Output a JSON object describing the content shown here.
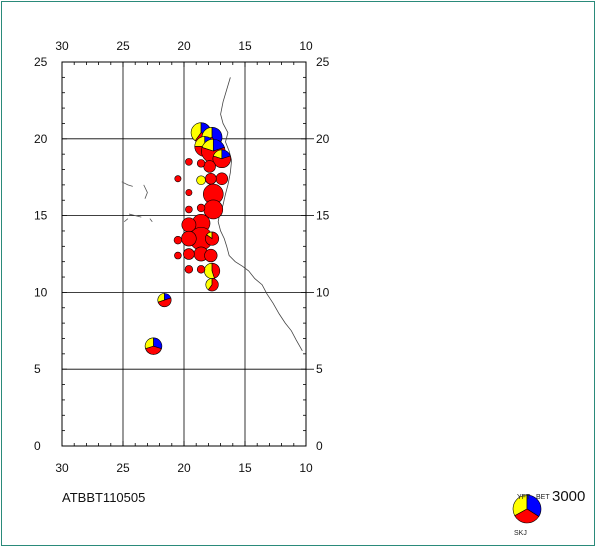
{
  "map": {
    "code": "ATBBT110505",
    "x_ticks": [
      "30",
      "25",
      "20",
      "15",
      "10"
    ],
    "y_ticks": [
      "25",
      "20",
      "15",
      "10",
      "5",
      "0"
    ],
    "lon_range": [
      30,
      10
    ],
    "lat_range": [
      0,
      25
    ]
  },
  "legend": {
    "species": [
      "YFT",
      "BET",
      "SKJ"
    ],
    "colors": {
      "YFT": "#ffff00",
      "BET": "#0000ff",
      "SKJ": "#ff0000"
    },
    "scale_value": "3000"
  },
  "catches": [
    {
      "lon": 18.6,
      "lat": 20.4,
      "size": 1.0,
      "yft": 0.4,
      "bet": 0.3,
      "skj": 0.3
    },
    {
      "lon": 17.7,
      "lat": 20.1,
      "size": 1.0,
      "yft": 0.3,
      "bet": 0.4,
      "skj": 0.3
    },
    {
      "lon": 18.3,
      "lat": 19.5,
      "size": 1.0,
      "yft": 0.25,
      "bet": 0.25,
      "skj": 0.5
    },
    {
      "lon": 17.6,
      "lat": 19.2,
      "size": 1.4,
      "yft": 0.2,
      "bet": 0.2,
      "skj": 0.6
    },
    {
      "lon": 16.9,
      "lat": 18.7,
      "size": 0.8,
      "yft": 0.2,
      "bet": 0.2,
      "skj": 0.6
    },
    {
      "lon": 17.9,
      "lat": 18.2,
      "size": 0.35,
      "yft": 0.0,
      "bet": 0.0,
      "skj": 1.0
    },
    {
      "lon": 16.9,
      "lat": 17.4,
      "size": 0.35,
      "yft": 0.0,
      "bet": 0.0,
      "skj": 1.0
    },
    {
      "lon": 18.6,
      "lat": 17.3,
      "size": 0.2,
      "yft": 1.0,
      "bet": 0.0,
      "skj": 0.0
    },
    {
      "lon": 17.8,
      "lat": 17.4,
      "size": 0.3,
      "yft": 0.0,
      "bet": 0.0,
      "skj": 1.0
    },
    {
      "lon": 17.6,
      "lat": 16.4,
      "size": 1.0,
      "yft": 0.0,
      "bet": 0.0,
      "skj": 1.0
    },
    {
      "lon": 17.6,
      "lat": 15.4,
      "size": 0.9,
      "yft": 0.0,
      "bet": 0.0,
      "skj": 1.0
    },
    {
      "lon": 18.6,
      "lat": 14.5,
      "size": 0.8,
      "yft": 0.0,
      "bet": 0.0,
      "skj": 1.0
    },
    {
      "lon": 19.6,
      "lat": 14.4,
      "size": 0.5,
      "yft": 0.0,
      "bet": 0.0,
      "skj": 1.0
    },
    {
      "lon": 18.6,
      "lat": 13.5,
      "size": 1.3,
      "yft": 0.0,
      "bet": 0.0,
      "skj": 1.0
    },
    {
      "lon": 19.6,
      "lat": 13.5,
      "size": 0.55,
      "yft": 0.0,
      "bet": 0.0,
      "skj": 1.0
    },
    {
      "lon": 17.7,
      "lat": 13.5,
      "size": 0.45,
      "yft": 0.15,
      "bet": 0.0,
      "skj": 0.85
    },
    {
      "lon": 18.6,
      "lat": 12.5,
      "size": 0.5,
      "yft": 0.0,
      "bet": 0.0,
      "skj": 1.0
    },
    {
      "lon": 17.8,
      "lat": 12.4,
      "size": 0.4,
      "yft": 0.0,
      "bet": 0.0,
      "skj": 1.0
    },
    {
      "lon": 19.6,
      "lat": 12.5,
      "size": 0.3,
      "yft": 0.0,
      "bet": 0.0,
      "skj": 1.0
    },
    {
      "lon": 17.7,
      "lat": 11.4,
      "size": 0.6,
      "yft": 0.55,
      "bet": 0.0,
      "skj": 0.45
    },
    {
      "lon": 17.7,
      "lat": 10.5,
      "size": 0.4,
      "yft": 0.4,
      "bet": 0.0,
      "skj": 0.6
    },
    {
      "lon": 21.6,
      "lat": 9.5,
      "size": 0.45,
      "yft": 0.3,
      "bet": 0.2,
      "skj": 0.5
    },
    {
      "lon": 22.5,
      "lat": 6.5,
      "size": 0.7,
      "yft": 0.3,
      "bet": 0.3,
      "skj": 0.4
    },
    {
      "lon": 18.6,
      "lat": 18.4,
      "size": 0.15,
      "yft": 0.0,
      "bet": 0.0,
      "skj": 1.0
    },
    {
      "lon": 19.6,
      "lat": 18.5,
      "size": 0.12,
      "yft": 0.0,
      "bet": 0.0,
      "skj": 1.0
    },
    {
      "lon": 19.6,
      "lat": 15.4,
      "size": 0.12,
      "yft": 0.0,
      "bet": 0.0,
      "skj": 1.0
    },
    {
      "lon": 18.6,
      "lat": 15.5,
      "size": 0.15,
      "yft": 0.0,
      "bet": 0.0,
      "skj": 1.0
    },
    {
      "lon": 20.5,
      "lat": 13.4,
      "size": 0.15,
      "yft": 0.0,
      "bet": 0.0,
      "skj": 1.0
    },
    {
      "lon": 19.6,
      "lat": 11.5,
      "size": 0.15,
      "yft": 0.0,
      "bet": 0.0,
      "skj": 1.0
    },
    {
      "lon": 18.6,
      "lat": 11.5,
      "size": 0.15,
      "yft": 0.0,
      "bet": 0.0,
      "skj": 1.0
    },
    {
      "lon": 20.5,
      "lat": 12.4,
      "size": 0.12,
      "yft": 0.0,
      "bet": 0.0,
      "skj": 1.0
    },
    {
      "lon": 19.6,
      "lat": 16.5,
      "size": 0.1,
      "yft": 0.0,
      "bet": 0.0,
      "skj": 1.0
    },
    {
      "lon": 20.5,
      "lat": 17.4,
      "size": 0.1,
      "yft": 0.0,
      "bet": 0.0,
      "skj": 1.0
    }
  ],
  "coastline": [
    [
      16.2,
      24.0
    ],
    [
      16.5,
      23.2
    ],
    [
      16.8,
      22.4
    ],
    [
      17.0,
      21.6
    ],
    [
      16.8,
      21.0
    ],
    [
      16.4,
      20.4
    ],
    [
      16.6,
      19.8
    ],
    [
      16.3,
      19.2
    ],
    [
      16.1,
      18.6
    ],
    [
      16.2,
      17.8
    ],
    [
      16.4,
      17.0
    ],
    [
      16.6,
      16.4
    ],
    [
      16.8,
      15.7
    ],
    [
      17.1,
      15.0
    ],
    [
      17.2,
      14.6
    ],
    [
      17.0,
      14.0
    ],
    [
      16.7,
      13.5
    ],
    [
      16.5,
      13.0
    ],
    [
      16.3,
      12.4
    ],
    [
      15.8,
      12.0
    ],
    [
      15.2,
      11.7
    ],
    [
      14.7,
      11.4
    ],
    [
      14.2,
      10.9
    ],
    [
      13.6,
      10.5
    ],
    [
      13.2,
      9.9
    ],
    [
      12.7,
      9.3
    ],
    [
      12.2,
      8.6
    ],
    [
      11.7,
      8.0
    ],
    [
      11.2,
      7.5
    ],
    [
      10.8,
      6.9
    ],
    [
      10.3,
      6.2
    ]
  ],
  "islands": [
    [
      [
        25.1,
        17.2
      ],
      [
        24.6,
        17.0
      ],
      [
        24.2,
        16.9
      ]
    ],
    [
      [
        23.3,
        17.0
      ],
      [
        23.0,
        16.5
      ],
      [
        23.2,
        16.1
      ]
    ],
    [
      [
        24.5,
        15.1
      ],
      [
        24.0,
        15.0
      ],
      [
        23.5,
        14.9
      ]
    ],
    [
      [
        24.9,
        14.6
      ],
      [
        24.6,
        14.8
      ]
    ],
    [
      [
        22.8,
        14.8
      ],
      [
        22.6,
        14.6
      ]
    ]
  ]
}
